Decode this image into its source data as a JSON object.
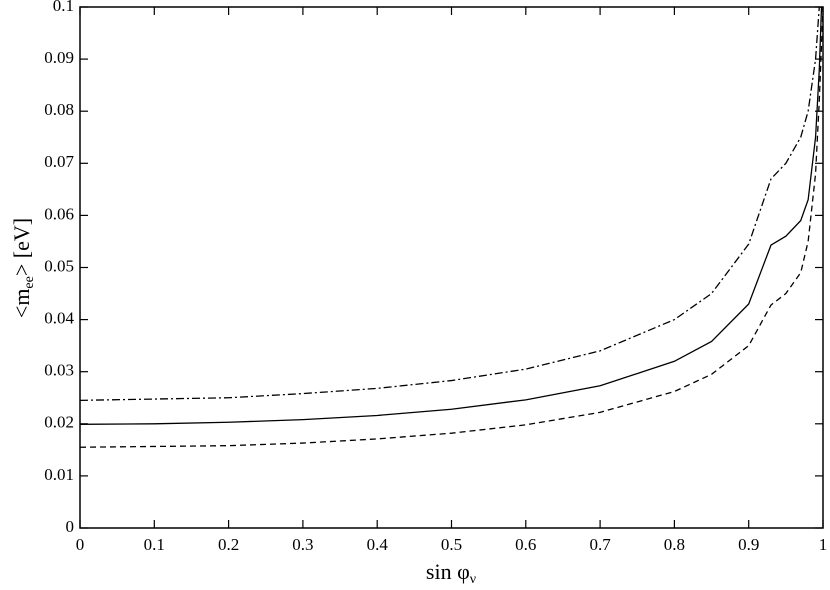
{
  "chart_data": {
    "type": "line",
    "xlabel": [
      "sin φ",
      "ν"
    ],
    "ylabel": [
      "<m",
      "ee",
      "> [eV]"
    ],
    "xlim": [
      0,
      1
    ],
    "ylim": [
      0,
      0.1
    ],
    "xticks": [
      0,
      0.1,
      0.2,
      0.3,
      0.4,
      0.5,
      0.6,
      0.7,
      0.8,
      0.9,
      1
    ],
    "yticks": [
      0,
      0.01,
      0.02,
      0.03,
      0.04,
      0.05,
      0.06,
      0.07,
      0.08,
      0.09,
      0.1
    ],
    "grid": false,
    "series": [
      {
        "color": "#000000",
        "dash": "dashdot",
        "x": [
          0,
          0.2,
          0.3,
          0.4,
          0.5,
          0.6,
          0.7,
          0.8,
          0.85,
          0.9,
          0.93,
          0.95,
          0.97,
          0.98,
          0.99,
          0.995
        ],
        "values": [
          0.0245,
          0.025,
          0.0258,
          0.0268,
          0.0283,
          0.0305,
          0.034,
          0.04,
          0.045,
          0.0545,
          0.067,
          0.07,
          0.075,
          0.08,
          0.09,
          0.1
        ]
      },
      {
        "color": "#000000",
        "dash": "solid",
        "x": [
          0,
          0.1,
          0.2,
          0.3,
          0.4,
          0.5,
          0.6,
          0.7,
          0.8,
          0.85,
          0.9,
          0.93,
          0.95,
          0.97,
          0.98,
          0.99,
          0.995,
          0.998
        ],
        "values": [
          0.0199,
          0.02,
          0.0203,
          0.0208,
          0.0216,
          0.0228,
          0.0246,
          0.0273,
          0.032,
          0.0358,
          0.043,
          0.0543,
          0.056,
          0.059,
          0.063,
          0.075,
          0.088,
          0.1
        ]
      },
      {
        "color": "#000000",
        "dash": "dashed",
        "x": [
          0,
          0.2,
          0.3,
          0.4,
          0.5,
          0.6,
          0.7,
          0.8,
          0.85,
          0.9,
          0.93,
          0.95,
          0.97,
          0.98,
          0.99,
          0.995,
          1
        ],
        "values": [
          0.0155,
          0.0158,
          0.0163,
          0.0171,
          0.0182,
          0.0198,
          0.0222,
          0.0262,
          0.0295,
          0.035,
          0.0428,
          0.045,
          0.049,
          0.055,
          0.068,
          0.082,
          0.1
        ]
      }
    ]
  }
}
